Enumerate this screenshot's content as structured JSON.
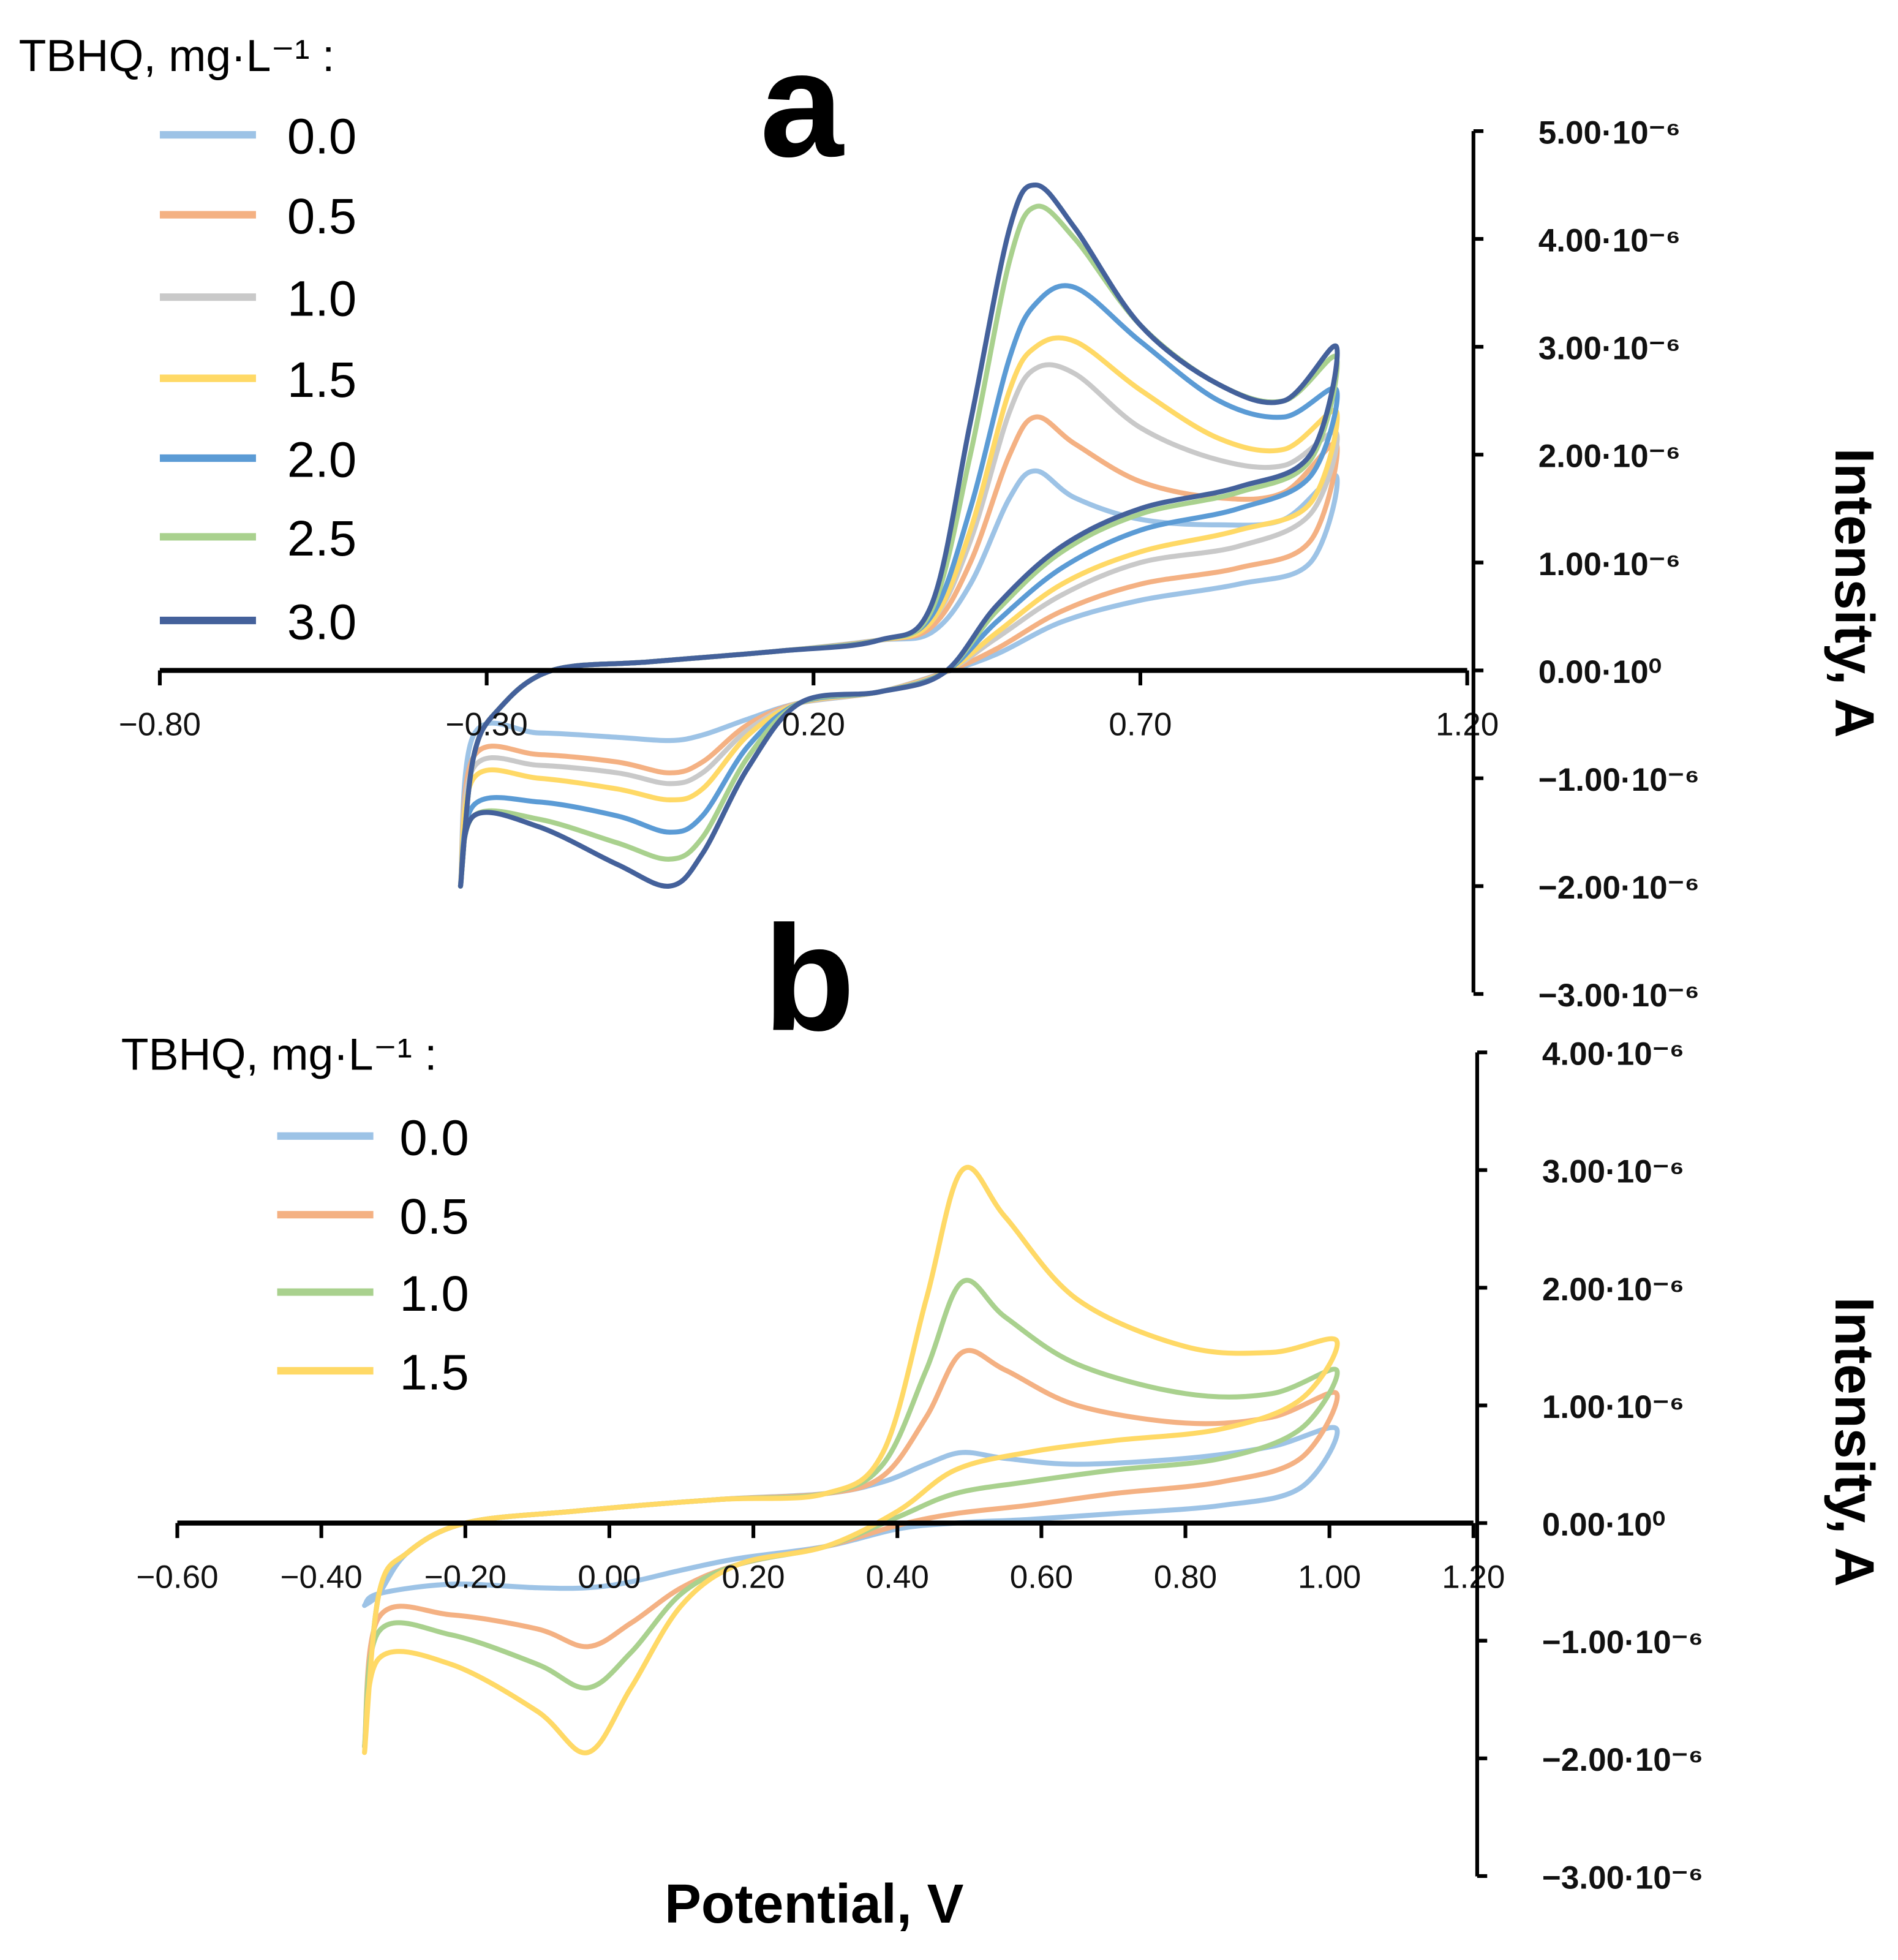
{
  "chart_data": [
    {
      "type": "line",
      "panel": "a",
      "xlabel": "Potential, V",
      "ylabel": "Intensity, A",
      "y_unit_note": "I values in 1e-6 A",
      "xlim": [
        -0.8,
        1.2
      ],
      "ylim": [
        -3.0,
        5.0
      ],
      "x_ticks": [
        "−0.80",
        "−0.30",
        "0.20",
        "0.70",
        "1.20"
      ],
      "x_tick_values": [
        -0.8,
        -0.3,
        0.2,
        0.7,
        1.2
      ],
      "y_ticks": [
        "5.00·10⁻⁶",
        "4.00·10⁻⁶",
        "3.00·10⁻⁶",
        "2.00·10⁻⁶",
        "1.00·10⁻⁶",
        "0.00·10⁰",
        "−1.00·10⁻⁶",
        "−2.00·10⁻⁶",
        "−3.00·10⁻⁶"
      ],
      "y_tick_values": [
        5,
        4,
        3,
        2,
        1,
        0,
        -1,
        -2,
        -3
      ],
      "legend_title": "TBHQ, mg·L⁻¹ :",
      "legend_placement": "top-left",
      "E_forward": [
        -0.34,
        -0.32,
        -0.28,
        -0.2,
        -0.05,
        0.15,
        0.3,
        0.38,
        0.44,
        0.5,
        0.54,
        0.6,
        0.7,
        0.82,
        0.92,
        1.0
      ],
      "E_reverse": [
        1.0,
        0.96,
        0.85,
        0.7,
        0.58,
        0.48,
        0.4,
        0.3,
        0.18,
        0.1,
        0.03,
        -0.02,
        -0.1,
        -0.22,
        -0.32,
        -0.34
      ],
      "series": [
        {
          "name": "0.0",
          "color": "#9DC3E6",
          "I_forward": [
            -2.0,
            -0.8,
            -0.35,
            0.0,
            0.08,
            0.18,
            0.28,
            0.35,
            0.8,
            1.6,
            1.85,
            1.6,
            1.4,
            1.35,
            1.4,
            1.8
          ],
          "I_reverse": [
            1.8,
            1.0,
            0.8,
            0.65,
            0.45,
            0.15,
            -0.02,
            -0.2,
            -0.3,
            -0.45,
            -0.6,
            -0.65,
            -0.62,
            -0.58,
            -0.6,
            -2.0
          ]
        },
        {
          "name": "0.5",
          "color": "#F4B183",
          "I_forward": [
            -2.0,
            -0.8,
            -0.35,
            0.0,
            0.08,
            0.18,
            0.28,
            0.4,
            1.0,
            2.0,
            2.35,
            2.1,
            1.75,
            1.6,
            1.65,
            2.1
          ],
          "I_reverse": [
            2.1,
            1.2,
            0.95,
            0.8,
            0.55,
            0.2,
            -0.02,
            -0.2,
            -0.3,
            -0.5,
            -0.85,
            -0.95,
            -0.85,
            -0.78,
            -0.8,
            -2.0
          ]
        },
        {
          "name": "1.0",
          "color": "#C9C9C9",
          "I_forward": [
            -2.0,
            -0.8,
            -0.35,
            0.0,
            0.08,
            0.18,
            0.28,
            0.45,
            1.2,
            2.4,
            2.8,
            2.75,
            2.25,
            1.95,
            1.9,
            2.2
          ],
          "I_reverse": [
            2.2,
            1.45,
            1.15,
            1.0,
            0.7,
            0.3,
            -0.02,
            -0.2,
            -0.3,
            -0.55,
            -0.95,
            -1.05,
            -0.95,
            -0.88,
            -0.9,
            -2.0
          ]
        },
        {
          "name": "1.5",
          "color": "#FFD966",
          "I_forward": [
            -2.0,
            -0.8,
            -0.35,
            0.0,
            0.08,
            0.18,
            0.28,
            0.45,
            1.3,
            2.6,
            3.0,
            3.05,
            2.6,
            2.15,
            2.05,
            2.4
          ],
          "I_reverse": [
            2.4,
            1.55,
            1.3,
            1.1,
            0.8,
            0.35,
            -0.02,
            -0.2,
            -0.3,
            -0.6,
            -1.1,
            -1.2,
            -1.1,
            -1.0,
            -1.0,
            -2.0
          ]
        },
        {
          "name": "2.0",
          "color": "#5B9BD5",
          "I_forward": [
            -2.0,
            -0.8,
            -0.35,
            0.0,
            0.08,
            0.18,
            0.28,
            0.5,
            1.5,
            2.9,
            3.4,
            3.55,
            3.05,
            2.5,
            2.35,
            2.6
          ],
          "I_reverse": [
            2.6,
            1.8,
            1.5,
            1.3,
            0.95,
            0.45,
            -0.02,
            -0.2,
            -0.3,
            -0.7,
            -1.35,
            -1.5,
            -1.35,
            -1.22,
            -1.25,
            -2.0
          ]
        },
        {
          "name": "2.5",
          "color": "#A9D18E",
          "I_forward": [
            -2.0,
            -0.8,
            -0.35,
            0.0,
            0.08,
            0.18,
            0.28,
            0.55,
            2.0,
            3.8,
            4.3,
            4.0,
            3.2,
            2.65,
            2.5,
            2.9
          ],
          "I_reverse": [
            2.9,
            1.95,
            1.65,
            1.45,
            1.1,
            0.55,
            -0.02,
            -0.2,
            -0.3,
            -0.8,
            -1.55,
            -1.75,
            -1.6,
            -1.38,
            -1.35,
            -2.0
          ]
        },
        {
          "name": "3.0",
          "color": "#44619B",
          "I_forward": [
            -2.0,
            -0.8,
            -0.35,
            0.0,
            0.08,
            0.18,
            0.28,
            0.6,
            2.3,
            4.1,
            4.5,
            4.1,
            3.2,
            2.65,
            2.5,
            3.0
          ],
          "I_reverse": [
            3.0,
            2.0,
            1.7,
            1.5,
            1.15,
            0.6,
            -0.02,
            -0.2,
            -0.3,
            -0.9,
            -1.7,
            -2.0,
            -1.8,
            -1.45,
            -1.35,
            -2.0
          ]
        }
      ]
    },
    {
      "type": "line",
      "panel": "b",
      "xlabel": "Potential, V",
      "ylabel": "Intensity, A",
      "y_unit_note": "I values in 1e-6 A",
      "xlim": [
        -0.6,
        1.2
      ],
      "ylim": [
        -3.0,
        4.0
      ],
      "x_ticks": [
        "−0.60",
        "−0.40",
        "−0.20",
        "0.00",
        "0.20",
        "0.40",
        "0.60",
        "0.80",
        "1.00",
        "1.20"
      ],
      "x_tick_values": [
        -0.6,
        -0.4,
        -0.2,
        0.0,
        0.2,
        0.4,
        0.6,
        0.8,
        1.0,
        1.2
      ],
      "y_ticks": [
        "4.00·10⁻⁶",
        "3.00·10⁻⁶",
        "2.00·10⁻⁶",
        "1.00·10⁻⁶",
        "0.00·10⁰",
        "−1.00·10⁻⁶",
        "−2.00·10⁻⁶",
        "−3.00·10⁻⁶"
      ],
      "y_tick_values": [
        4,
        3,
        2,
        1,
        0,
        -1,
        -2,
        -3
      ],
      "legend_title": "TBHQ, mg·L⁻¹ :",
      "legend_placement": "top-left",
      "E_forward": [
        -0.34,
        -0.32,
        -0.28,
        -0.2,
        -0.05,
        0.15,
        0.3,
        0.38,
        0.44,
        0.49,
        0.55,
        0.65,
        0.8,
        0.92,
        1.01
      ],
      "E_reverse": [
        1.01,
        0.96,
        0.85,
        0.7,
        0.58,
        0.48,
        0.4,
        0.3,
        0.18,
        0.1,
        0.03,
        -0.03,
        -0.1,
        -0.22,
        -0.32,
        -0.34
      ],
      "series": [
        {
          "name": "0.0",
          "color": "#9DC3E6",
          "I_forward": [
            -0.7,
            -0.6,
            -0.25,
            0.0,
            0.1,
            0.2,
            0.25,
            0.35,
            0.5,
            0.6,
            0.55,
            0.5,
            0.55,
            0.65,
            0.8
          ],
          "I_reverse": [
            0.8,
            0.3,
            0.15,
            0.08,
            0.03,
            0.0,
            -0.05,
            -0.2,
            -0.3,
            -0.4,
            -0.5,
            -0.55,
            -0.55,
            -0.52,
            -0.6,
            -0.7
          ]
        },
        {
          "name": "0.5",
          "color": "#F4B183",
          "I_forward": [
            -1.9,
            -0.6,
            -0.25,
            0.0,
            0.1,
            0.2,
            0.25,
            0.4,
            0.9,
            1.45,
            1.3,
            1.0,
            0.85,
            0.9,
            1.1
          ],
          "I_reverse": [
            1.1,
            0.55,
            0.35,
            0.25,
            0.15,
            0.08,
            -0.02,
            -0.2,
            -0.35,
            -0.55,
            -0.85,
            -1.05,
            -0.9,
            -0.78,
            -0.8,
            -1.9
          ]
        },
        {
          "name": "1.0",
          "color": "#A9D18E",
          "I_forward": [
            -1.9,
            -0.6,
            -0.25,
            0.0,
            0.1,
            0.2,
            0.25,
            0.5,
            1.3,
            2.05,
            1.75,
            1.35,
            1.1,
            1.1,
            1.3
          ],
          "I_reverse": [
            1.3,
            0.8,
            0.55,
            0.45,
            0.35,
            0.25,
            0.05,
            -0.2,
            -0.35,
            -0.6,
            -1.1,
            -1.4,
            -1.2,
            -0.95,
            -0.92,
            -1.9
          ]
        },
        {
          "name": "1.5",
          "color": "#FFD966",
          "I_forward": [
            -1.95,
            -0.6,
            -0.25,
            0.0,
            0.1,
            0.2,
            0.25,
            0.6,
            1.9,
            3.0,
            2.6,
            1.9,
            1.5,
            1.45,
            1.55
          ],
          "I_reverse": [
            1.55,
            1.05,
            0.8,
            0.7,
            0.6,
            0.45,
            0.1,
            -0.2,
            -0.35,
            -0.7,
            -1.4,
            -1.95,
            -1.6,
            -1.2,
            -1.15,
            -1.95
          ]
        }
      ]
    }
  ]
}
